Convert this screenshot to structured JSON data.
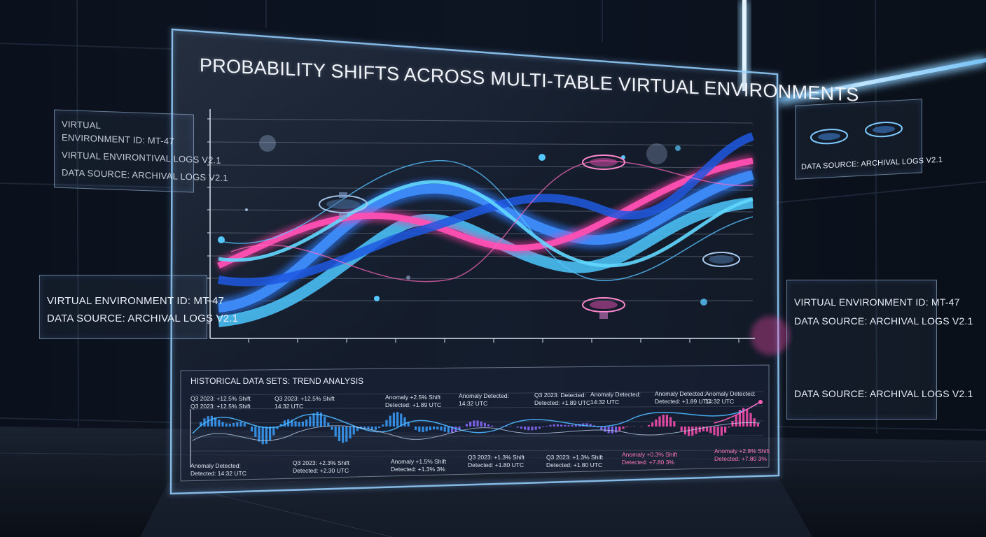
{
  "title": "PROBABILITY SHIFTS ACROSS MULTI-TABLE VIRTUAL ENVIRONMENTS",
  "cards": {
    "top_left": {
      "line1": "VIRTUAL",
      "line2": "ENVIRONMENT ID: MT-47",
      "line3": "VIRTUAL ENVIRONTIVAL LOGS v2.1",
      "line4": "DATA SOURCE: ARCHIVAL LOGS v2.1"
    },
    "mid_left": {
      "line1": "VIRTUAL ENVIRONMENT ID: MT-47",
      "line2": "DATA SOURCE: ARCHIVAL LOGS v2.1"
    },
    "top_right": {
      "line1": "DATA SOURCE: ARCHIVAL LOGS v2.1"
    },
    "bottom_right": {
      "line1": "VIRTUAL ENVIRONMENT ID: MT-47",
      "line2": "DATA SOURCE: ARCHIVAL LOGS v2.1",
      "line3": "DATA SOURCE: ARCHIVAL LOGS v2.1"
    }
  },
  "history": {
    "title": "HISTORICAL DATA SETS: TREND ANALYSIS",
    "annotations": [
      {
        "l1": "Q3 2023: +12.5% Shift",
        "l2": "Q3 2023: +12.5% Shift",
        "tone": "light"
      },
      {
        "l1": "Q3 2023: +12.5% Shift",
        "l2": "14:32 UTC",
        "tone": "light"
      },
      {
        "l1": "Anomaly +2.5% Shift",
        "l2": "Detected: +1.89 UTC",
        "tone": "light"
      },
      {
        "l1": "Anomaly Detected:",
        "l2": "14:32 UTC",
        "tone": "light"
      },
      {
        "l1": "Q3 2023: Detected:",
        "l2": "Detected: +1.89 UTC",
        "tone": "light"
      },
      {
        "l1": "Anomaly Detected:",
        "l2": "14:32 UTC",
        "tone": "light"
      },
      {
        "l1": "Anomaly Detected:",
        "l2": "Detected: +1.89 UTC",
        "tone": "light"
      },
      {
        "l1": "Anomaly Detected:",
        "l2": "14:32 UTC",
        "tone": "light"
      },
      {
        "l1": "Anomaly Detected:",
        "l2": "Detected: 14:32 UTC",
        "tone": "light"
      },
      {
        "l1": "Q3 2023: +2.3% Shift",
        "l2": "Detected: +2.30 UTC",
        "tone": "light"
      },
      {
        "l1": "Anomaly +1.5% Shift",
        "l2": "Detected: +1.3% 3%",
        "tone": "light"
      },
      {
        "l1": "Q3 2023: +1.3% Shift",
        "l2": "Detected: +1.80 UTC",
        "tone": "light"
      },
      {
        "l1": "Q3 2023: +1.3% Shift",
        "l2": "Detected: +1.80 UTC",
        "tone": "light"
      },
      {
        "l1": "Anomaly +0.3% Shift",
        "l2": "Detected: +7.80 3%",
        "tone": "pink"
      },
      {
        "l1": "Anomaly +2.8% Shift",
        "l2": "Detected: +7.80 3%",
        "tone": "pink"
      }
    ]
  },
  "colors": {
    "blue": "#2f7dff",
    "cyan": "#4cc8ff",
    "pink": "#ff3fa6",
    "magenta": "#d13cff",
    "panel_border": "#9ad2ff"
  },
  "icons": [
    "poker-table-icon"
  ]
}
